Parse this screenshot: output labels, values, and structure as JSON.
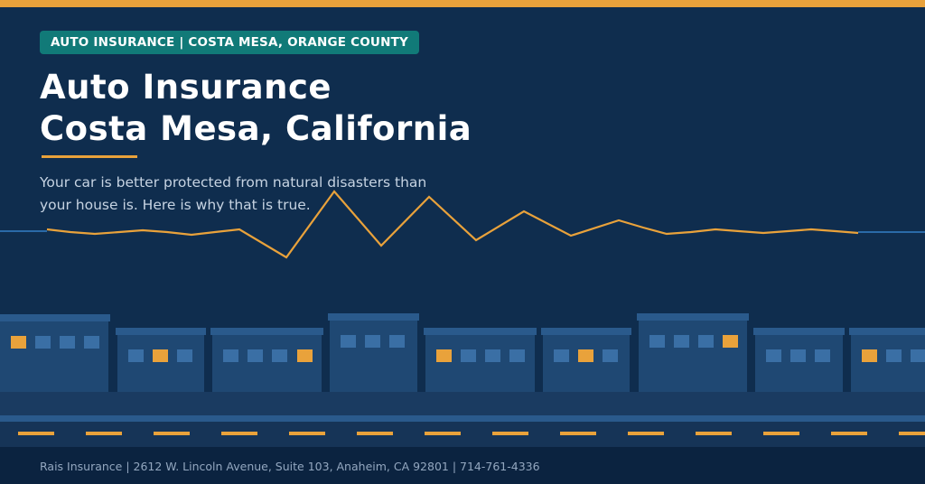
{
  "badge": {
    "text": "AUTO INSURANCE  |  COSTA MESA, ORANGE COUNTY"
  },
  "hero": {
    "title_line_1": "Auto Insurance",
    "title_line_2": "Costa Mesa, California",
    "subtitle": "Your car is better protected from natural disasters than your house is. Here is why that is true."
  },
  "footer": {
    "text": "Rais Insurance  |  2612 W. Lincoln Avenue, Suite 103, Anaheim, CA 92801  |  714-761-4336"
  },
  "colors": {
    "background": "#0f2d4e",
    "accent_orange": "#e9a23b",
    "badge_teal": "#117a78",
    "building": "#1f4873",
    "footer": "#0b2340"
  },
  "icons": {
    "seismograph": "seismograph-line-icon",
    "city": "building-skyline-icon",
    "road": "road-icon"
  }
}
